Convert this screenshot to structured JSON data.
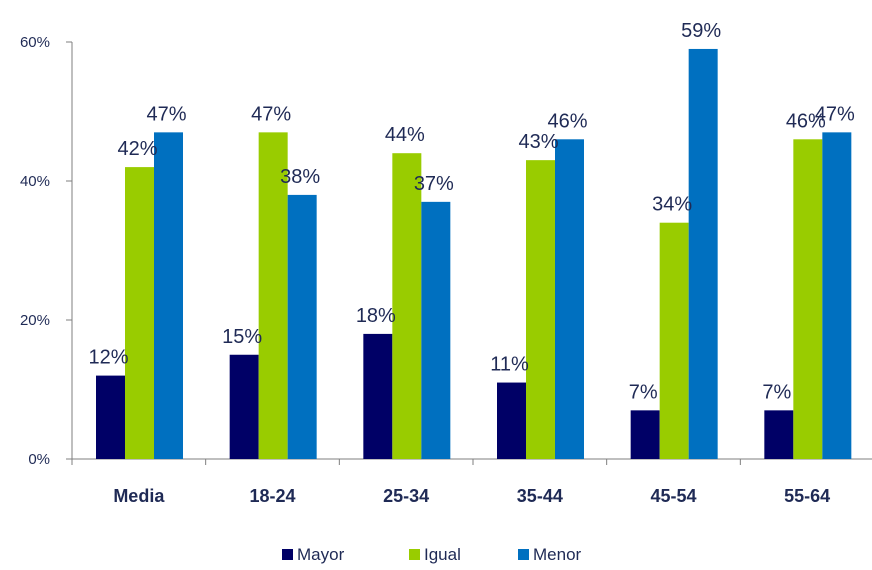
{
  "chart_data": {
    "type": "bar",
    "categories": [
      "Media",
      "18-24",
      "25-34",
      "35-44",
      "45-54",
      "55-64"
    ],
    "series": [
      {
        "name": "Mayor",
        "values": [
          12,
          15,
          18,
          11,
          7,
          7
        ],
        "color": "#000066"
      },
      {
        "name": "Igual",
        "values": [
          42,
          47,
          44,
          43,
          34,
          46
        ],
        "color": "#99cc00"
      },
      {
        "name": "Menor",
        "values": [
          47,
          38,
          37,
          46,
          59,
          47
        ],
        "color": "#0070c0"
      }
    ],
    "data_labels": [
      [
        "12%",
        "15%",
        "18%",
        "11%",
        "7%",
        "7%"
      ],
      [
        "42%",
        "47%",
        "44%",
        "43%",
        "34%",
        "46%"
      ],
      [
        "47%",
        "38%",
        "37%",
        "46%",
        "59%",
        "47%"
      ]
    ],
    "ylim": [
      0,
      60
    ],
    "yticks": [
      0,
      20,
      40,
      60
    ],
    "ytick_labels": [
      "0%",
      "20%",
      "40%",
      "60%"
    ],
    "grid": false,
    "legend_position": "bottom"
  }
}
